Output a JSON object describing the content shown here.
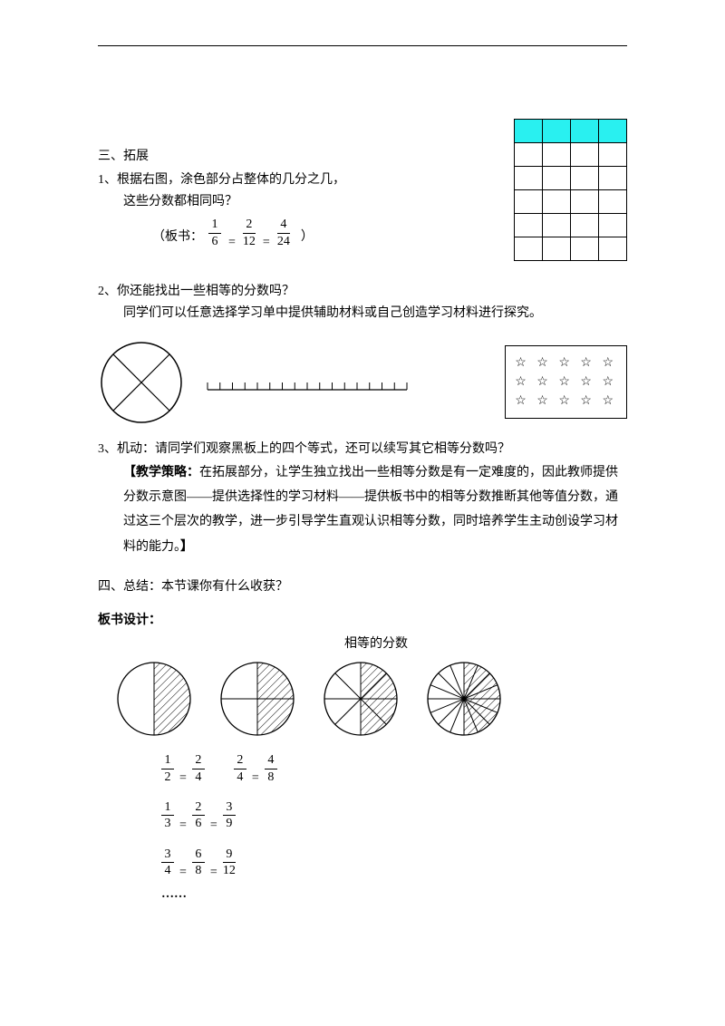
{
  "colors": {
    "text": "#000000",
    "background": "#ffffff",
    "grid_fill": "#29f0f0",
    "stroke": "#000000"
  },
  "section3": {
    "heading": "三、拓展",
    "q1_line1": "1、根据右图，涂色部分占整体的几分之几，",
    "q1_line2": "这些分数都相同吗？",
    "board_prefix": "（板书：",
    "board_suffix": "）",
    "grid": {
      "rows": 6,
      "cols": 4,
      "shaded_row": 0
    },
    "eq1": {
      "fracs": [
        [
          1,
          6
        ],
        [
          2,
          12
        ],
        [
          4,
          24
        ]
      ]
    }
  },
  "q2": {
    "line1": "2、你还能找出一些相等的分数吗？",
    "line2": "同学们可以任意选择学习单中提供辅助材料或自己创造学习材料进行探究。",
    "stars": {
      "rows": 3,
      "cols": 5,
      "glyph": "☆"
    },
    "circle": {
      "r": 44,
      "divisions": 4
    },
    "numberline": {
      "ticks": 17,
      "length": 220
    }
  },
  "q3": {
    "line1": "3、机动：请同学们观察黑板上的四个等式，还可以续写其它相等分数吗？",
    "strategy_label": "【教学策略：",
    "strategy_body": "在拓展部分，让学生独立找出一些相等分数是有一定难度的，因此教师提供分数示意图——提供选择性的学习材料——提供板书中的相等分数推断其他等值分数，通过这三个层次的教学，进一步引导学生直观认识相等分数，同时培养学生主动创设学习材料的能力。",
    "strategy_close": "】"
  },
  "section4": {
    "heading": "四、总结：本节课你有什么收获？"
  },
  "board": {
    "title": "板书设计：",
    "caption": "相等的分数",
    "circles": [
      {
        "segments": 2,
        "shaded": 1
      },
      {
        "segments": 4,
        "shaded": 2
      },
      {
        "segments": 8,
        "shaded": 4
      },
      {
        "segments": 16,
        "shaded": 8
      }
    ],
    "equations": [
      {
        "group1": [
          [
            1,
            2
          ],
          [
            2,
            4
          ]
        ],
        "group2": [
          [
            2,
            4
          ],
          [
            4,
            8
          ]
        ]
      },
      {
        "group1": [
          [
            1,
            3
          ],
          [
            2,
            6
          ],
          [
            3,
            9
          ]
        ]
      },
      {
        "group1": [
          [
            3,
            4
          ],
          [
            6,
            8
          ],
          [
            9,
            12
          ]
        ]
      }
    ],
    "ellipsis": "……"
  }
}
